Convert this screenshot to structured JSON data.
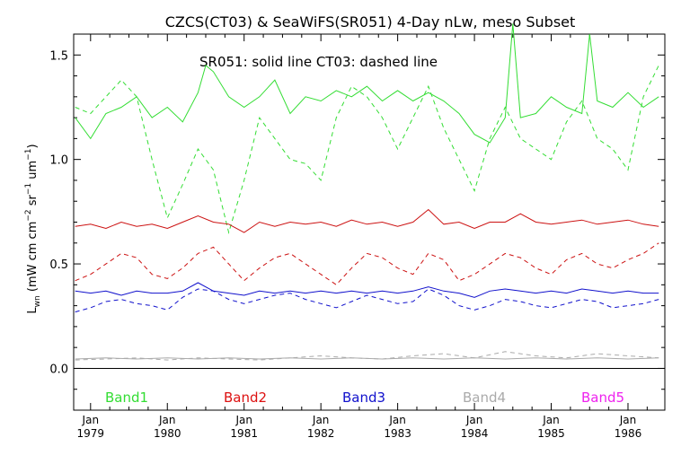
{
  "chart_data": {
    "type": "line",
    "title": "CZCS(CT03) & SeaWiFS(SR051) 4-Day nLw, meso Subset",
    "annotation": "SR051: solid line    CT03: dashed line",
    "ylabel": "L",
    "ylabel_sub": "wn",
    "ylabel_units": "(mW cm",
    "ylabel_units_full": "(mW cm⁻² sr⁻¹ um⁻¹)",
    "xlabel": "",
    "xlim": [
      1978.78,
      1986.48
    ],
    "ylim": [
      -0.2,
      1.6
    ],
    "grid": false,
    "legend_placement": "bottom",
    "y_ticks": [
      {
        "value": 0.0,
        "label": "0.0"
      },
      {
        "value": 0.5,
        "label": "0.5"
      },
      {
        "value": 1.0,
        "label": "1.0"
      },
      {
        "value": 1.5,
        "label": "1.5"
      }
    ],
    "x_ticks": [
      {
        "value": 1979.0,
        "month": "Jan",
        "year": "1979"
      },
      {
        "value": 1980.0,
        "month": "Jan",
        "year": "1980"
      },
      {
        "value": 1981.0,
        "month": "Jan",
        "year": "1981"
      },
      {
        "value": 1982.0,
        "month": "Jan",
        "year": "1982"
      },
      {
        "value": 1983.0,
        "month": "Jan",
        "year": "1983"
      },
      {
        "value": 1984.0,
        "month": "Jan",
        "year": "1984"
      },
      {
        "value": 1985.0,
        "month": "Jan",
        "year": "1985"
      },
      {
        "value": 1986.0,
        "month": "Jan",
        "year": "1986"
      }
    ],
    "legend": [
      {
        "label": "Band1",
        "color": "#33dd33"
      },
      {
        "label": "Band2",
        "color": "#dd1111"
      },
      {
        "label": "Band3",
        "color": "#1111cc"
      },
      {
        "label": "Band4",
        "color": "#aaaaaa"
      },
      {
        "label": "Band5",
        "color": "#ee22ee"
      }
    ],
    "series": [
      {
        "band": "Band1",
        "sensor": "SR051",
        "style": "solid",
        "color": "#33dd33",
        "x": [
          1978.8,
          1979.0,
          1979.2,
          1979.4,
          1979.6,
          1979.8,
          1980.0,
          1980.2,
          1980.4,
          1980.5,
          1980.6,
          1980.8,
          1981.0,
          1981.2,
          1981.4,
          1981.6,
          1981.8,
          1982.0,
          1982.2,
          1982.4,
          1982.6,
          1982.8,
          1983.0,
          1983.2,
          1983.4,
          1983.6,
          1983.8,
          1984.0,
          1984.2,
          1984.4,
          1984.5,
          1984.6,
          1984.8,
          1985.0,
          1985.2,
          1985.4,
          1985.5,
          1985.6,
          1985.8,
          1986.0,
          1986.2,
          1986.4
        ],
        "y": [
          1.2,
          1.1,
          1.22,
          1.25,
          1.3,
          1.2,
          1.25,
          1.18,
          1.32,
          1.45,
          1.42,
          1.3,
          1.25,
          1.3,
          1.38,
          1.22,
          1.3,
          1.28,
          1.33,
          1.3,
          1.35,
          1.28,
          1.33,
          1.28,
          1.32,
          1.28,
          1.22,
          1.12,
          1.08,
          1.2,
          1.65,
          1.2,
          1.22,
          1.3,
          1.25,
          1.22,
          1.6,
          1.28,
          1.25,
          1.32,
          1.25,
          1.3
        ]
      },
      {
        "band": "Band1",
        "sensor": "CT03",
        "style": "dashed",
        "color": "#33dd33",
        "x": [
          1978.8,
          1979.0,
          1979.2,
          1979.4,
          1979.6,
          1979.8,
          1980.0,
          1980.2,
          1980.4,
          1980.6,
          1980.8,
          1981.0,
          1981.2,
          1981.4,
          1981.6,
          1981.8,
          1982.0,
          1982.2,
          1982.4,
          1982.6,
          1982.8,
          1983.0,
          1983.2,
          1983.4,
          1983.6,
          1983.8,
          1984.0,
          1984.2,
          1984.4,
          1984.6,
          1984.8,
          1985.0,
          1985.2,
          1985.4,
          1985.6,
          1985.8,
          1986.0,
          1986.2,
          1986.4
        ],
        "y": [
          1.25,
          1.22,
          1.3,
          1.38,
          1.3,
          1.0,
          0.72,
          0.88,
          1.05,
          0.95,
          0.65,
          0.9,
          1.2,
          1.1,
          1.0,
          0.98,
          0.9,
          1.2,
          1.35,
          1.3,
          1.2,
          1.05,
          1.2,
          1.35,
          1.15,
          1.0,
          0.85,
          1.1,
          1.25,
          1.1,
          1.05,
          1.0,
          1.18,
          1.28,
          1.1,
          1.05,
          0.95,
          1.3,
          1.45
        ]
      },
      {
        "band": "Band2",
        "sensor": "SR051",
        "style": "solid",
        "color": "#cc1111",
        "x": [
          1978.8,
          1979.0,
          1979.2,
          1979.4,
          1979.6,
          1979.8,
          1980.0,
          1980.2,
          1980.4,
          1980.6,
          1980.8,
          1981.0,
          1981.2,
          1981.4,
          1981.6,
          1981.8,
          1982.0,
          1982.2,
          1982.4,
          1982.6,
          1982.8,
          1983.0,
          1983.2,
          1983.4,
          1983.6,
          1983.8,
          1984.0,
          1984.2,
          1984.4,
          1984.6,
          1984.8,
          1985.0,
          1985.2,
          1985.4,
          1985.6,
          1985.8,
          1986.0,
          1986.2,
          1986.4
        ],
        "y": [
          0.68,
          0.69,
          0.67,
          0.7,
          0.68,
          0.69,
          0.67,
          0.7,
          0.73,
          0.7,
          0.69,
          0.65,
          0.7,
          0.68,
          0.7,
          0.69,
          0.7,
          0.68,
          0.71,
          0.69,
          0.7,
          0.68,
          0.7,
          0.76,
          0.69,
          0.7,
          0.67,
          0.7,
          0.7,
          0.74,
          0.7,
          0.69,
          0.7,
          0.71,
          0.69,
          0.7,
          0.71,
          0.69,
          0.68
        ]
      },
      {
        "band": "Band2",
        "sensor": "CT03",
        "style": "dashed",
        "color": "#cc1111",
        "x": [
          1978.8,
          1979.0,
          1979.2,
          1979.4,
          1979.6,
          1979.8,
          1980.0,
          1980.2,
          1980.4,
          1980.6,
          1980.8,
          1981.0,
          1981.2,
          1981.4,
          1981.6,
          1981.8,
          1982.0,
          1982.2,
          1982.4,
          1982.6,
          1982.8,
          1983.0,
          1983.2,
          1983.4,
          1983.6,
          1983.8,
          1984.0,
          1984.2,
          1984.4,
          1984.6,
          1984.8,
          1985.0,
          1985.2,
          1985.4,
          1985.6,
          1985.8,
          1986.0,
          1986.2,
          1986.4
        ],
        "y": [
          0.42,
          0.45,
          0.5,
          0.55,
          0.53,
          0.45,
          0.43,
          0.48,
          0.55,
          0.58,
          0.5,
          0.42,
          0.48,
          0.53,
          0.55,
          0.5,
          0.45,
          0.4,
          0.48,
          0.55,
          0.53,
          0.48,
          0.45,
          0.55,
          0.52,
          0.42,
          0.45,
          0.5,
          0.55,
          0.53,
          0.48,
          0.45,
          0.52,
          0.55,
          0.5,
          0.48,
          0.52,
          0.55,
          0.6
        ]
      },
      {
        "band": "Band3",
        "sensor": "SR051",
        "style": "solid",
        "color": "#1111cc",
        "x": [
          1978.8,
          1979.0,
          1979.2,
          1979.4,
          1979.6,
          1979.8,
          1980.0,
          1980.2,
          1980.4,
          1980.6,
          1980.8,
          1981.0,
          1981.2,
          1981.4,
          1981.6,
          1981.8,
          1982.0,
          1982.2,
          1982.4,
          1982.6,
          1982.8,
          1983.0,
          1983.2,
          1983.4,
          1983.6,
          1983.8,
          1984.0,
          1984.2,
          1984.4,
          1984.6,
          1984.8,
          1985.0,
          1985.2,
          1985.4,
          1985.6,
          1985.8,
          1986.0,
          1986.2,
          1986.4
        ],
        "y": [
          0.37,
          0.36,
          0.37,
          0.35,
          0.37,
          0.36,
          0.36,
          0.37,
          0.41,
          0.37,
          0.36,
          0.35,
          0.37,
          0.36,
          0.37,
          0.36,
          0.37,
          0.36,
          0.37,
          0.36,
          0.37,
          0.36,
          0.37,
          0.39,
          0.37,
          0.36,
          0.34,
          0.37,
          0.38,
          0.37,
          0.36,
          0.37,
          0.36,
          0.38,
          0.37,
          0.36,
          0.37,
          0.36,
          0.36
        ]
      },
      {
        "band": "Band3",
        "sensor": "CT03",
        "style": "dashed",
        "color": "#1111cc",
        "x": [
          1978.8,
          1979.0,
          1979.2,
          1979.4,
          1979.6,
          1979.8,
          1980.0,
          1980.2,
          1980.4,
          1980.6,
          1980.8,
          1981.0,
          1981.2,
          1981.4,
          1981.6,
          1981.8,
          1982.0,
          1982.2,
          1982.4,
          1982.6,
          1982.8,
          1983.0,
          1983.2,
          1983.4,
          1983.6,
          1983.8,
          1984.0,
          1984.2,
          1984.4,
          1984.6,
          1984.8,
          1985.0,
          1985.2,
          1985.4,
          1985.6,
          1985.8,
          1986.0,
          1986.2,
          1986.4
        ],
        "y": [
          0.27,
          0.29,
          0.32,
          0.33,
          0.31,
          0.3,
          0.28,
          0.34,
          0.38,
          0.37,
          0.33,
          0.31,
          0.33,
          0.35,
          0.36,
          0.33,
          0.31,
          0.29,
          0.32,
          0.35,
          0.33,
          0.31,
          0.32,
          0.38,
          0.35,
          0.3,
          0.28,
          0.3,
          0.33,
          0.32,
          0.3,
          0.29,
          0.31,
          0.33,
          0.32,
          0.29,
          0.3,
          0.31,
          0.33
        ]
      },
      {
        "band": "Band4",
        "sensor": "SR051",
        "style": "solid",
        "color": "#aaaaaa",
        "x": [
          1978.8,
          1979.2,
          1979.6,
          1980.0,
          1980.4,
          1980.8,
          1981.2,
          1981.6,
          1982.0,
          1982.4,
          1982.8,
          1983.2,
          1983.6,
          1984.0,
          1984.4,
          1984.8,
          1985.2,
          1985.6,
          1986.0,
          1986.4
        ],
        "y": [
          0.045,
          0.05,
          0.045,
          0.05,
          0.045,
          0.05,
          0.045,
          0.05,
          0.045,
          0.05,
          0.045,
          0.05,
          0.045,
          0.05,
          0.045,
          0.05,
          0.045,
          0.05,
          0.045,
          0.05
        ]
      },
      {
        "band": "Band4",
        "sensor": "CT03",
        "style": "dashed",
        "color": "#aaaaaa",
        "x": [
          1978.8,
          1979.2,
          1979.6,
          1980.0,
          1980.4,
          1980.8,
          1981.2,
          1981.6,
          1982.0,
          1982.4,
          1982.8,
          1983.2,
          1983.6,
          1984.0,
          1984.4,
          1984.8,
          1985.2,
          1985.6,
          1986.0,
          1986.4
        ],
        "y": [
          0.04,
          0.045,
          0.05,
          0.04,
          0.05,
          0.045,
          0.04,
          0.05,
          0.06,
          0.05,
          0.045,
          0.06,
          0.07,
          0.05,
          0.08,
          0.06,
          0.05,
          0.07,
          0.06,
          0.05
        ]
      }
    ]
  }
}
